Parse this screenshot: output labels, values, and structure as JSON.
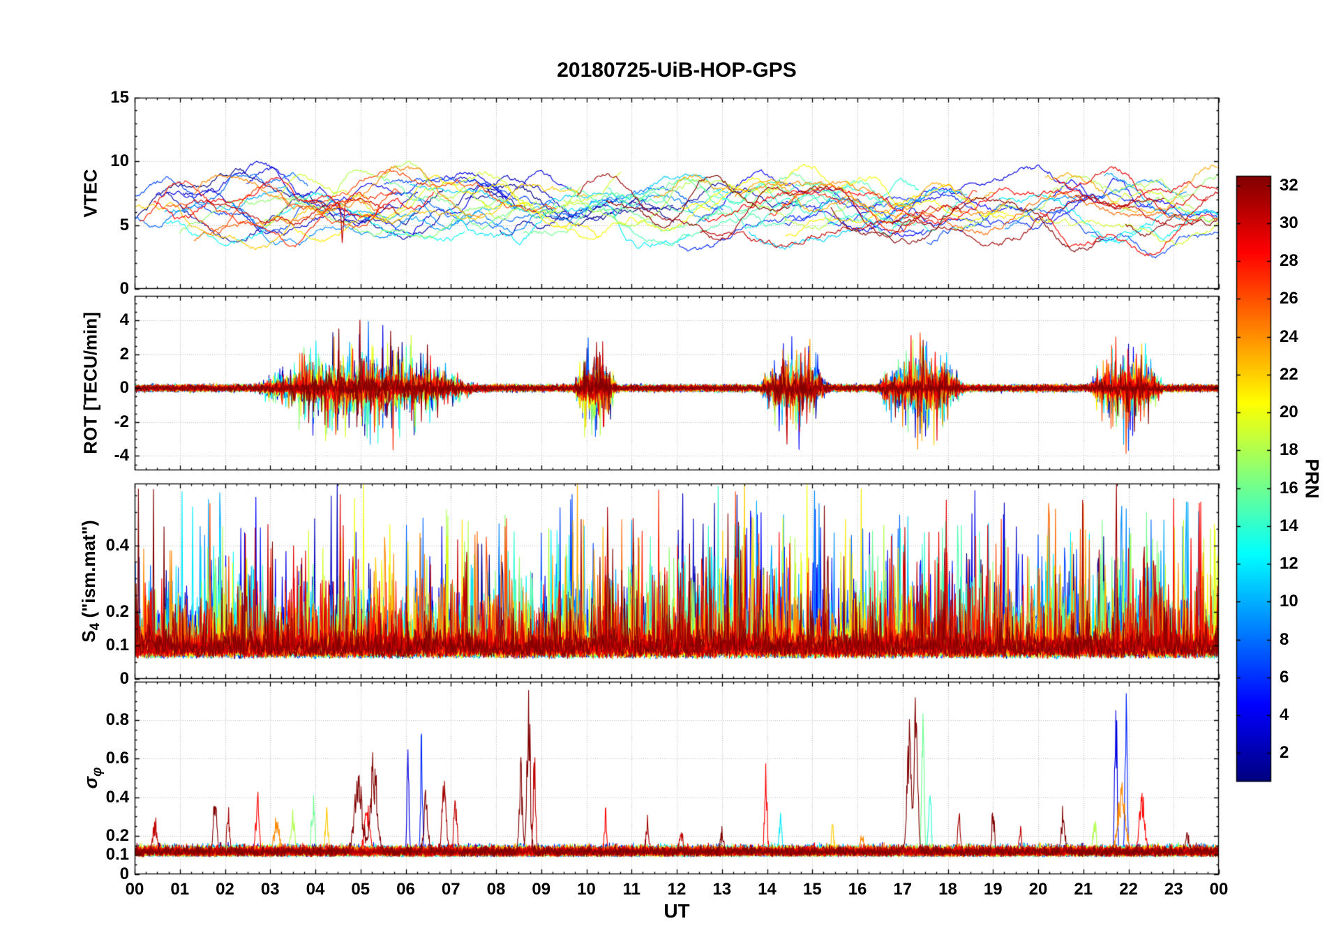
{
  "chart_data": {
    "type": "line",
    "title": "20180725-UiB-HOP-GPS",
    "xlabel": "UT",
    "x_range_hours": [
      0,
      24
    ],
    "x_ticks": [
      "00",
      "01",
      "02",
      "03",
      "04",
      "05",
      "06",
      "07",
      "08",
      "09",
      "10",
      "11",
      "12",
      "13",
      "14",
      "15",
      "16",
      "17",
      "18",
      "19",
      "20",
      "21",
      "22",
      "23",
      "00"
    ],
    "x_minor_step_hours": 0.25,
    "grid": true,
    "n_series": 32,
    "series_unit": "one line per GPS PRN, colored by PRN number (jet colormap)",
    "colorbar": {
      "label": "PRN",
      "colormap": "jet",
      "range": [
        1,
        32
      ],
      "ticks": [
        2,
        4,
        6,
        8,
        10,
        12,
        14,
        16,
        18,
        20,
        22,
        24,
        26,
        28,
        30,
        32
      ],
      "color_low": "#00007f",
      "color_high": "#7f0000"
    },
    "panels": [
      {
        "id": "vtec",
        "ylabel": "VTEC",
        "ylim": [
          0,
          15
        ],
        "ytick_values": [
          0,
          5,
          10,
          15
        ],
        "ytick_labels": [
          "0",
          "5",
          "10",
          "15"
        ],
        "minor_step": 1,
        "typical_range": [
          4,
          12
        ],
        "events": [
          {
            "t": 4.65,
            "prn": 32,
            "peak": -7.5,
            "w": 0.03
          },
          {
            "t": 4.6,
            "prn": 30,
            "peak": -3.0,
            "w": 0.03
          },
          {
            "t": 6.2,
            "prn": 5,
            "peak": 3.2,
            "w": 0.3
          },
          {
            "t": 8.9,
            "prn": 28,
            "peak": 2.6,
            "w": 0.9
          },
          {
            "t": 14.2,
            "prn": 29,
            "peak": 2.8,
            "w": 0.35
          },
          {
            "t": 17.5,
            "prn": 17,
            "peak": 4.3,
            "w": 0.04
          },
          {
            "t": 17.55,
            "prn": 16,
            "peak": -4.5,
            "w": 0.05
          }
        ]
      },
      {
        "id": "rot",
        "ylabel": "ROT [TECU/min]",
        "ylim": [
          -4.85,
          5.45
        ],
        "ytick_values": [
          -4,
          -2,
          0,
          2,
          4
        ],
        "ytick_labels": [
          "-4",
          "-2",
          "0",
          "2",
          "4"
        ],
        "minor_step": 0.5,
        "baseline_amplitude": 0.3,
        "burst_amplitude": 4.2,
        "burst_windows": [
          [
            2.6,
            7.6
          ],
          [
            9.7,
            10.7
          ],
          [
            13.8,
            15.4
          ],
          [
            16.4,
            18.4
          ],
          [
            21.1,
            22.8
          ]
        ]
      },
      {
        "id": "s4",
        "ylabel": "S4 (\"ism.mat\")",
        "ylabel_main": "S",
        "ylabel_sub": "4",
        "ylabel_rest": " (\"ism.mat\")",
        "ylim": [
          0,
          0.585
        ],
        "ytick_values": [
          0,
          0.1,
          0.2,
          0.4
        ],
        "ytick_labels": [
          "0",
          "0.1",
          "0.2",
          "0.4"
        ],
        "minor_step": 0.05,
        "baseline_range": [
          0.05,
          0.15
        ],
        "spike_max": 0.58
      },
      {
        "id": "sigma_phi",
        "ylabel": "σφ",
        "ylabel_main": "σ",
        "ylabel_sub": "φ",
        "ylim": [
          0,
          1.0
        ],
        "ytick_values": [
          0,
          0.1,
          0.2,
          0.4,
          0.6,
          0.8
        ],
        "ytick_labels": [
          "0",
          "0.1",
          "0.2",
          "0.4",
          "0.6",
          "0.8"
        ],
        "minor_step": 0.05,
        "baseline": 0.1,
        "events": [
          {
            "t": 0.45,
            "prn": 30,
            "peak": 0.18,
            "w": 0.06
          },
          {
            "t": 1.78,
            "prn": 32,
            "peak": 0.38,
            "w": 0.05
          },
          {
            "t": 2.07,
            "prn": 31,
            "peak": 0.25,
            "w": 0.04
          },
          {
            "t": 2.72,
            "prn": 28,
            "peak": 0.33,
            "w": 0.05
          },
          {
            "t": 3.15,
            "prn": 24,
            "peak": 0.22,
            "w": 0.08
          },
          {
            "t": 3.5,
            "prn": 18,
            "peak": 0.22,
            "w": 0.06
          },
          {
            "t": 3.95,
            "prn": 16,
            "peak": 0.3,
            "w": 0.05
          },
          {
            "t": 4.25,
            "prn": 22,
            "peak": 0.22,
            "w": 0.05
          },
          {
            "t": 4.95,
            "prn": 32,
            "peak": 0.42,
            "w": 0.12
          },
          {
            "t": 5.3,
            "prn": 32,
            "peak": 0.55,
            "w": 0.1
          },
          {
            "t": 5.15,
            "prn": 28,
            "peak": 0.3,
            "w": 0.08
          },
          {
            "t": 6.05,
            "prn": 4,
            "peak": 0.62,
            "w": 0.03
          },
          {
            "t": 6.35,
            "prn": 6,
            "peak": 0.64,
            "w": 0.03
          },
          {
            "t": 6.45,
            "prn": 32,
            "peak": 0.35,
            "w": 0.06
          },
          {
            "t": 6.85,
            "prn": 31,
            "peak": 0.45,
            "w": 0.06
          },
          {
            "t": 7.1,
            "prn": 30,
            "peak": 0.3,
            "w": 0.05
          },
          {
            "t": 8.55,
            "prn": 32,
            "peak": 0.5,
            "w": 0.05
          },
          {
            "t": 8.72,
            "prn": 32,
            "peak": 0.95,
            "w": 0.05
          },
          {
            "t": 8.85,
            "prn": 30,
            "peak": 0.6,
            "w": 0.04
          },
          {
            "t": 10.42,
            "prn": 28,
            "peak": 0.28,
            "w": 0.03
          },
          {
            "t": 11.35,
            "prn": 31,
            "peak": 0.18,
            "w": 0.04
          },
          {
            "t": 12.1,
            "prn": 30,
            "peak": 0.12,
            "w": 0.05
          },
          {
            "t": 13.0,
            "prn": 32,
            "peak": 0.12,
            "w": 0.05
          },
          {
            "t": 13.97,
            "prn": 28,
            "peak": 0.47,
            "w": 0.04
          },
          {
            "t": 14.3,
            "prn": 12,
            "peak": 0.22,
            "w": 0.04
          },
          {
            "t": 15.45,
            "prn": 22,
            "peak": 0.17,
            "w": 0.04
          },
          {
            "t": 16.1,
            "prn": 24,
            "peak": 0.12,
            "w": 0.05
          },
          {
            "t": 17.15,
            "prn": 32,
            "peak": 0.75,
            "w": 0.07
          },
          {
            "t": 17.3,
            "prn": 32,
            "peak": 0.95,
            "w": 0.05
          },
          {
            "t": 17.45,
            "prn": 16,
            "peak": 0.75,
            "w": 0.04
          },
          {
            "t": 17.6,
            "prn": 14,
            "peak": 0.45,
            "w": 0.04
          },
          {
            "t": 18.25,
            "prn": 31,
            "peak": 0.22,
            "w": 0.04
          },
          {
            "t": 19.0,
            "prn": 32,
            "peak": 0.25,
            "w": 0.04
          },
          {
            "t": 19.6,
            "prn": 30,
            "peak": 0.15,
            "w": 0.04
          },
          {
            "t": 20.55,
            "prn": 32,
            "peak": 0.28,
            "w": 0.05
          },
          {
            "t": 21.25,
            "prn": 18,
            "peak": 0.2,
            "w": 0.05
          },
          {
            "t": 21.72,
            "prn": 4,
            "peak": 0.95,
            "w": 0.035
          },
          {
            "t": 21.95,
            "prn": 6,
            "peak": 0.9,
            "w": 0.035
          },
          {
            "t": 21.85,
            "prn": 24,
            "peak": 0.4,
            "w": 0.12
          },
          {
            "t": 22.3,
            "prn": 28,
            "peak": 0.35,
            "w": 0.08
          },
          {
            "t": 23.3,
            "prn": 32,
            "peak": 0.12,
            "w": 0.05
          }
        ]
      }
    ]
  }
}
